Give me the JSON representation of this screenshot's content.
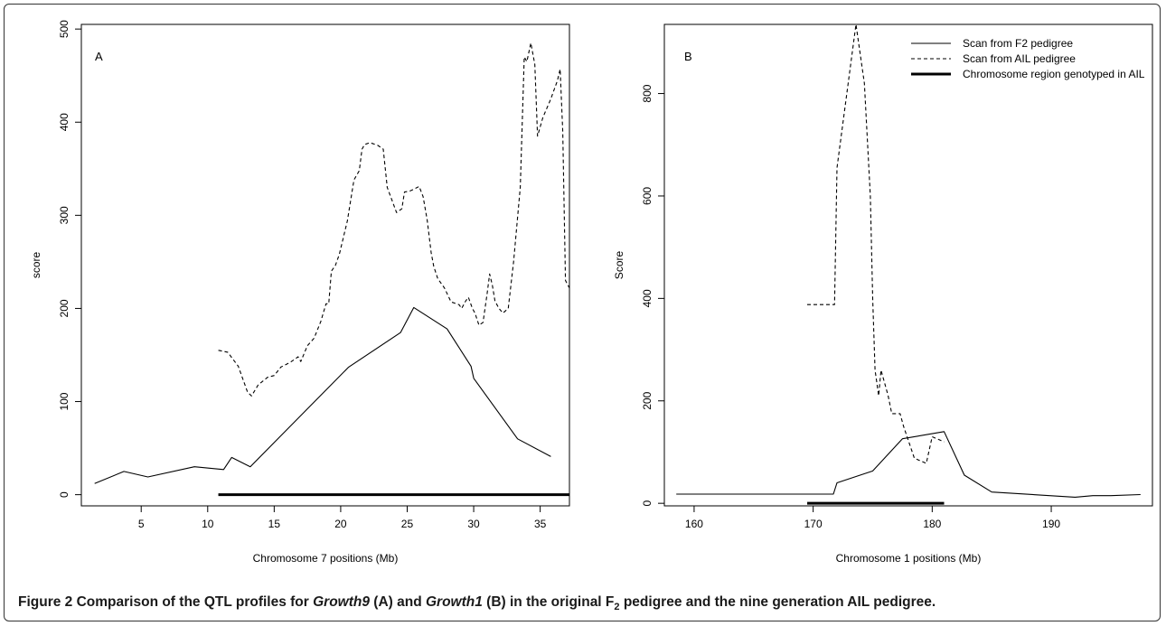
{
  "caption": {
    "segments": [
      {
        "text": "Figure 2 ",
        "bold": true
      },
      {
        "text": "Comparison of the QTL profiles for ",
        "bold": true
      },
      {
        "text": "Growth9",
        "bold": true,
        "italic": true
      },
      {
        "text": " (A) and ",
        "bold": true
      },
      {
        "text": "Growth1",
        "bold": true,
        "italic": true
      },
      {
        "text": " (B) in the original F",
        "bold": true
      },
      {
        "text": "2",
        "bold": true,
        "sub": true
      },
      {
        "text": " pedigree and the nine generation AIL pedigree.",
        "bold": true
      }
    ]
  },
  "chart_data": [
    {
      "type": "line",
      "panel_label": "A",
      "xlabel": "Chromosome 7 positions (Mb)",
      "ylabel": "score",
      "xlim": [
        0.5,
        37.2
      ],
      "ylim": [
        -12,
        505
      ],
      "xticks": [
        5,
        10,
        15,
        20,
        25,
        30,
        35
      ],
      "yticks": [
        0,
        100,
        200,
        300,
        400,
        500
      ],
      "grid": false,
      "series": [
        {
          "style": "solid",
          "points": [
            [
              1.5,
              12
            ],
            [
              3.7,
              25
            ],
            [
              5.5,
              19
            ],
            [
              9,
              30
            ],
            [
              11.2,
              27
            ],
            [
              11.8,
              40
            ],
            [
              13.2,
              30
            ],
            [
              20.6,
              137
            ],
            [
              24.5,
              174
            ],
            [
              25.5,
              201
            ],
            [
              28,
              178
            ],
            [
              29.8,
              138
            ],
            [
              30,
              125
            ],
            [
              33.3,
              60
            ],
            [
              35.8,
              41
            ]
          ]
        },
        {
          "style": "dashed",
          "points": [
            [
              10.8,
              155
            ],
            [
              11.5,
              153
            ],
            [
              12.3,
              138
            ],
            [
              13,
              110
            ],
            [
              13.3,
              106
            ],
            [
              13.8,
              118
            ],
            [
              14.5,
              126
            ],
            [
              15,
              128
            ],
            [
              15.5,
              137
            ],
            [
              16.2,
              142
            ],
            [
              16.8,
              148
            ],
            [
              17,
              143
            ],
            [
              17.5,
              160
            ],
            [
              18,
              168
            ],
            [
              18.5,
              186
            ],
            [
              18.9,
              205
            ],
            [
              19.1,
              205
            ],
            [
              19.3,
              240
            ],
            [
              19.6,
              246
            ],
            [
              19.9,
              258
            ],
            [
              20.5,
              294
            ],
            [
              21,
              338
            ],
            [
              21.4,
              348
            ],
            [
              21.6,
              371
            ],
            [
              21.8,
              376
            ],
            [
              22.2,
              378
            ],
            [
              22.8,
              375
            ],
            [
              23.2,
              371
            ],
            [
              23.5,
              330
            ],
            [
              24.2,
              303
            ],
            [
              24.6,
              307
            ],
            [
              24.8,
              325
            ],
            [
              25.2,
              326
            ],
            [
              25.5,
              328
            ],
            [
              25.9,
              331
            ],
            [
              26.2,
              320
            ],
            [
              26.5,
              295
            ],
            [
              26.8,
              260
            ],
            [
              27,
              245
            ],
            [
              27.3,
              232
            ],
            [
              27.8,
              222
            ],
            [
              28.3,
              207
            ],
            [
              28.9,
              204
            ],
            [
              29.1,
              200
            ],
            [
              29.4,
              208
            ],
            [
              29.6,
              212
            ],
            [
              29.9,
              200
            ],
            [
              30.1,
              195
            ],
            [
              30.4,
              182
            ],
            [
              30.7,
              185
            ],
            [
              31,
              215
            ],
            [
              31.2,
              237
            ],
            [
              31.4,
              225
            ],
            [
              31.6,
              208
            ],
            [
              31.9,
              200
            ],
            [
              32.2,
              195
            ],
            [
              32.6,
              200
            ],
            [
              33,
              250
            ],
            [
              33.5,
              330
            ],
            [
              33.8,
              470
            ],
            [
              34,
              465
            ],
            [
              34.3,
              485
            ],
            [
              34.6,
              462
            ],
            [
              34.8,
              385
            ],
            [
              35.2,
              405
            ],
            [
              35.8,
              425
            ],
            [
              36.3,
              445
            ],
            [
              36.5,
              457
            ],
            [
              36.7,
              390
            ],
            [
              36.9,
              230
            ],
            [
              37.2,
              222
            ],
            [
              37.4,
              220
            ]
          ]
        }
      ],
      "region_bar": {
        "x": [
          10.8,
          37.2
        ],
        "y": 0
      }
    },
    {
      "type": "line",
      "panel_label": "B",
      "xlabel": "Chromosome 1 positions (Mb)",
      "ylabel": "Score",
      "xlim": [
        157.5,
        198.5
      ],
      "ylim": [
        -5,
        935
      ],
      "xticks": [
        160,
        170,
        180,
        190
      ],
      "yticks": [
        0,
        200,
        400,
        600,
        800
      ],
      "grid": false,
      "legend": {
        "placement": "top-right",
        "entries": [
          {
            "label": "Scan from F2 pedigree",
            "style": "solid"
          },
          {
            "label": "Scan from AIL pedigree",
            "style": "dashed"
          },
          {
            "label": "Chromosome region genotyped in AIL",
            "style": "thick"
          }
        ]
      },
      "series": [
        {
          "style": "solid",
          "points": [
            [
              158.5,
              18
            ],
            [
              171.7,
              18
            ],
            [
              172,
              40
            ],
            [
              175,
              63
            ],
            [
              177.5,
              126
            ],
            [
              181,
              140
            ],
            [
              182.7,
              55
            ],
            [
              185,
              22
            ],
            [
              192,
              12
            ],
            [
              193.5,
              15
            ],
            [
              195,
              15
            ],
            [
              197.5,
              17
            ]
          ]
        },
        {
          "style": "dashed",
          "points": [
            [
              169.5,
              388
            ],
            [
              171.8,
              388
            ],
            [
              172,
              655
            ],
            [
              173.6,
              935
            ],
            [
              174.3,
              820
            ],
            [
              174.8,
              600
            ],
            [
              175,
              400
            ],
            [
              175.2,
              260
            ],
            [
              175.5,
              210
            ],
            [
              175.7,
              260
            ],
            [
              176.3,
              210
            ],
            [
              176.6,
              175
            ],
            [
              177.3,
              175
            ],
            [
              177.6,
              150
            ],
            [
              178.5,
              88
            ],
            [
              179.5,
              78
            ],
            [
              180,
              130
            ],
            [
              180.5,
              125
            ],
            [
              181,
              120
            ]
          ]
        }
      ],
      "region_bar": {
        "x": [
          169.5,
          181
        ],
        "y": 0
      }
    }
  ]
}
